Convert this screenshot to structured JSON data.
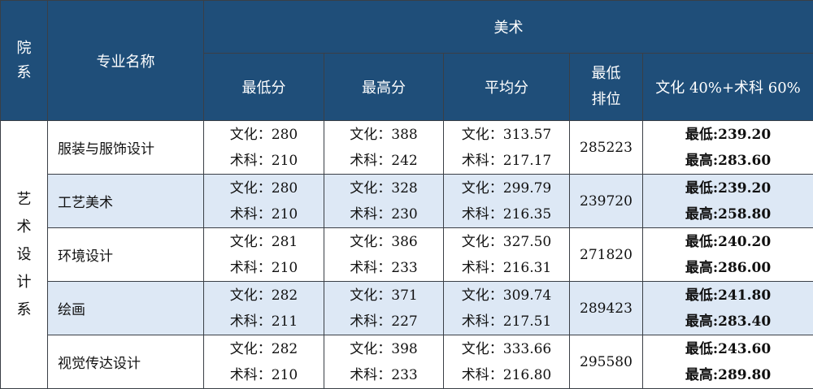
{
  "header": {
    "dept": "院系",
    "major": "专业名称",
    "group": "美术",
    "min": "最低分",
    "max": "最高分",
    "avg": "平均分",
    "rank_line1": "最低",
    "rank_line2": "排位",
    "combo": "文化 40%+术科 60%"
  },
  "dept_name": "艺术设计系",
  "rows": [
    {
      "major": "服装与服饰设计",
      "min": [
        "文化：280",
        "术科：210"
      ],
      "max": [
        "文化：388",
        "术科：242"
      ],
      "avg": [
        "文化：313.57",
        "术科：217.17"
      ],
      "rank": "285223",
      "combo": [
        "最低:239.20",
        "最高:283.60"
      ]
    },
    {
      "major": "工艺美术",
      "min": [
        "文化：280",
        "术科：210"
      ],
      "max": [
        "文化：328",
        "术科：230"
      ],
      "avg": [
        "文化：299.79",
        "术科：216.35"
      ],
      "rank": "239720",
      "combo": [
        "最低:239.20",
        "最高:258.80"
      ]
    },
    {
      "major": "环境设计",
      "min": [
        "文化：281",
        "术科：210"
      ],
      "max": [
        "文化：386",
        "术科：233"
      ],
      "avg": [
        "文化：327.50",
        "术科：216.31"
      ],
      "rank": "271820",
      "combo": [
        "最低:240.20",
        "最高:286.00"
      ]
    },
    {
      "major": "绘画",
      "min": [
        "文化：282",
        "术科：211"
      ],
      "max": [
        "文化：371",
        "术科：227"
      ],
      "avg": [
        "文化：309.74",
        "术科：217.51"
      ],
      "rank": "289423",
      "combo": [
        "最低:241.80",
        "最高:283.40"
      ]
    },
    {
      "major": "视觉传达设计",
      "min": [
        "文化：282",
        "术科：210"
      ],
      "max": [
        "文化：398",
        "术科：233"
      ],
      "avg": [
        "文化：333.66",
        "术科：216.80"
      ],
      "rank": "295580",
      "combo": [
        "最低:243.60",
        "最高:289.80"
      ]
    }
  ],
  "colors": {
    "header_bg": "#1f4e79",
    "alt_row_bg": "#dde8f5"
  }
}
